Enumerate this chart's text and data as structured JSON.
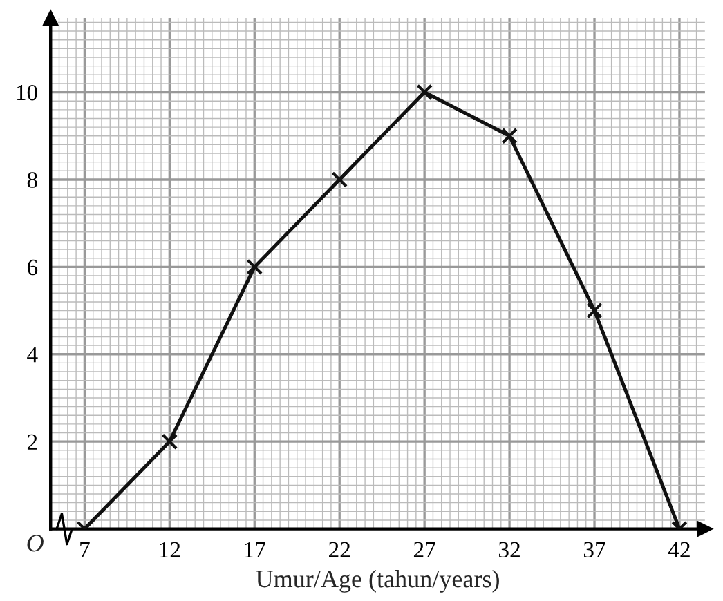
{
  "chart_data": {
    "type": "line",
    "xlabel": "Umur/Age (tahun/years)",
    "x": [
      7,
      12,
      17,
      22,
      27,
      32,
      37,
      42
    ],
    "series": [
      {
        "color": "#111111",
        "values": [
          0,
          2,
          6,
          8,
          10,
          9,
          5,
          0
        ]
      }
    ],
    "xlim": [
      5,
      43.5
    ],
    "ylim": [
      0,
      11.7
    ],
    "xticks": [
      7,
      12,
      17,
      22,
      27,
      32,
      37,
      42
    ],
    "yticks": [
      2,
      4,
      6,
      8,
      10
    ],
    "grid": true,
    "marker": "cross",
    "line_style": "solid",
    "annotations": [
      "O"
    ]
  }
}
